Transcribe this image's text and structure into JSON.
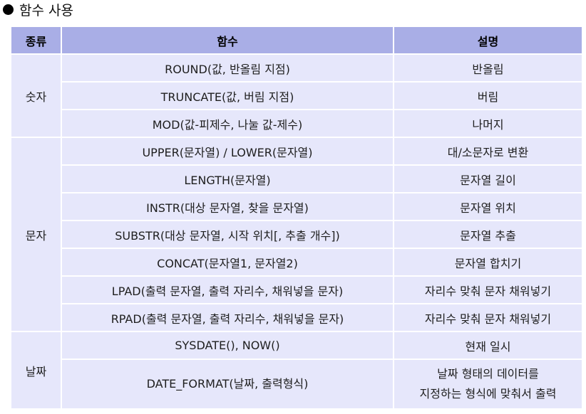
{
  "heading": "함수 사용",
  "table": {
    "headers": [
      "종류",
      "함수",
      "설명"
    ],
    "groups": [
      {
        "type": "숫자",
        "rows": [
          {
            "func": "ROUND(값, 반올림 지점)",
            "desc": [
              "반올림"
            ]
          },
          {
            "func": "TRUNCATE(값, 버림 지점)",
            "desc": [
              "버림"
            ]
          },
          {
            "func": "MOD(값-피제수, 나눌 값-제수)",
            "desc": [
              "나머지"
            ]
          }
        ]
      },
      {
        "type": "문자",
        "rows": [
          {
            "func": "UPPER(문자열) / LOWER(문자열)",
            "desc": [
              "대/소문자로 변환"
            ]
          },
          {
            "func": "LENGTH(문자열)",
            "desc": [
              "문자열 길이"
            ]
          },
          {
            "func": "INSTR(대상 문자열, 찾을 문자열)",
            "desc": [
              "문자열 위치"
            ]
          },
          {
            "func": "SUBSTR(대상 문자열, 시작 위치[, 추출 개수])",
            "desc": [
              "문자열 추출"
            ]
          },
          {
            "func": "CONCAT(문자열1, 문자열2)",
            "desc": [
              "문자열 합치기"
            ]
          },
          {
            "func": "LPAD(출력 문자열, 출력 자리수, 채워넣을 문자)",
            "desc": [
              "자리수 맞춰 문자 채워넣기"
            ]
          },
          {
            "func": "RPAD(출력 문자열, 출력 자리수, 채워넣을 문자)",
            "desc": [
              "자리수 맞춰 문자 채워넣기"
            ]
          }
        ]
      },
      {
        "type": "날짜",
        "rows": [
          {
            "func": "SYSDATE(), NOW()",
            "desc": [
              "현재 일시"
            ]
          },
          {
            "func": "DATE_FORMAT(날짜, 출력형식)",
            "desc": [
              "날짜 형태의 데이터를",
              "지정하는 형식에 맞춰서 출력"
            ]
          }
        ]
      }
    ]
  }
}
